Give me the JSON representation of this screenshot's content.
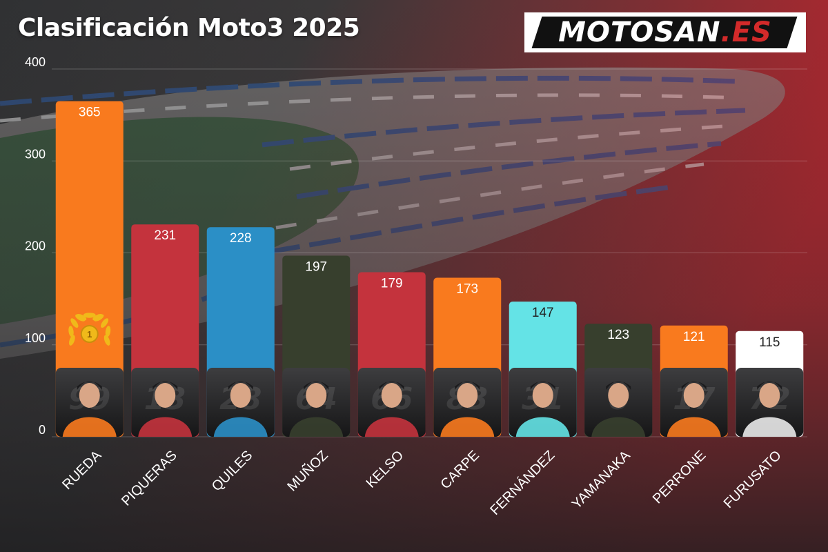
{
  "header": {
    "title": "Clasificación Moto3 2025",
    "logo_text_main": "MOTOSAN",
    "logo_text_accent": ".ES"
  },
  "colors": {
    "orange": "#f97a1e",
    "red": "#c4333d",
    "blue": "#2b8fc6",
    "dark_green": "#373f2d",
    "cyan": "#64e3e6",
    "white": "#ffffff",
    "gold_medal": "#f0b91a"
  },
  "chart_data": {
    "type": "bar",
    "title": "Clasificación Moto3 2025",
    "xlabel": "",
    "ylabel": "",
    "ylim": [
      0,
      400
    ],
    "yticks": [
      0,
      100,
      200,
      300,
      400
    ],
    "grid": true,
    "categories": [
      "RUEDA",
      "PIQUERAS",
      "QUILES",
      "MUÑOZ",
      "KELSO",
      "CARPE",
      "FERNÁNDEZ",
      "YAMANAKA",
      "PERRONE",
      "FURUSATO"
    ],
    "values": [
      365,
      231,
      228,
      197,
      179,
      173,
      147,
      123,
      121,
      115
    ],
    "bar_colors": [
      "#f97a1e",
      "#c4333d",
      "#2b8fc6",
      "#373f2d",
      "#c4333d",
      "#f97a1e",
      "#64e3e6",
      "#373f2d",
      "#f97a1e",
      "#ffffff"
    ],
    "label_colors": [
      "#ffffff",
      "#ffffff",
      "#ffffff",
      "#ffffff",
      "#ffffff",
      "#ffffff",
      "#222222",
      "#ffffff",
      "#ffffff",
      "#222222"
    ],
    "rider_numbers": [
      "99",
      "13",
      "28",
      "64",
      "66",
      "83",
      "31",
      "6",
      "17",
      "72"
    ],
    "annotations": [
      {
        "category": "RUEDA",
        "marker": "laurel-medal-icon",
        "medal_text": "1"
      }
    ]
  }
}
